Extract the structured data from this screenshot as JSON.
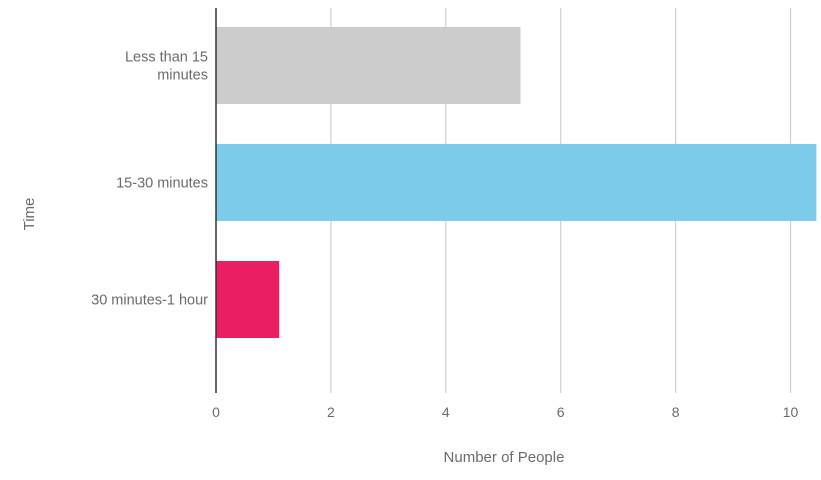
{
  "chart_data": {
    "type": "bar",
    "orientation": "horizontal",
    "categories": [
      [
        "Less than 15",
        "minutes"
      ],
      [
        "15-30 minutes"
      ],
      [
        "30 minutes-1 hour"
      ]
    ],
    "values": [
      5.3,
      10.45,
      1.1
    ],
    "colors": [
      "#cccccc",
      "#7ccbe8",
      "#e91e63"
    ],
    "xlabel": "Number of People",
    "ylabel": "Time",
    "xlim": [
      0,
      10.45
    ],
    "xticks": [
      "0",
      "2",
      "4",
      "6",
      "8",
      "10"
    ],
    "grid": true,
    "legend": "none"
  }
}
